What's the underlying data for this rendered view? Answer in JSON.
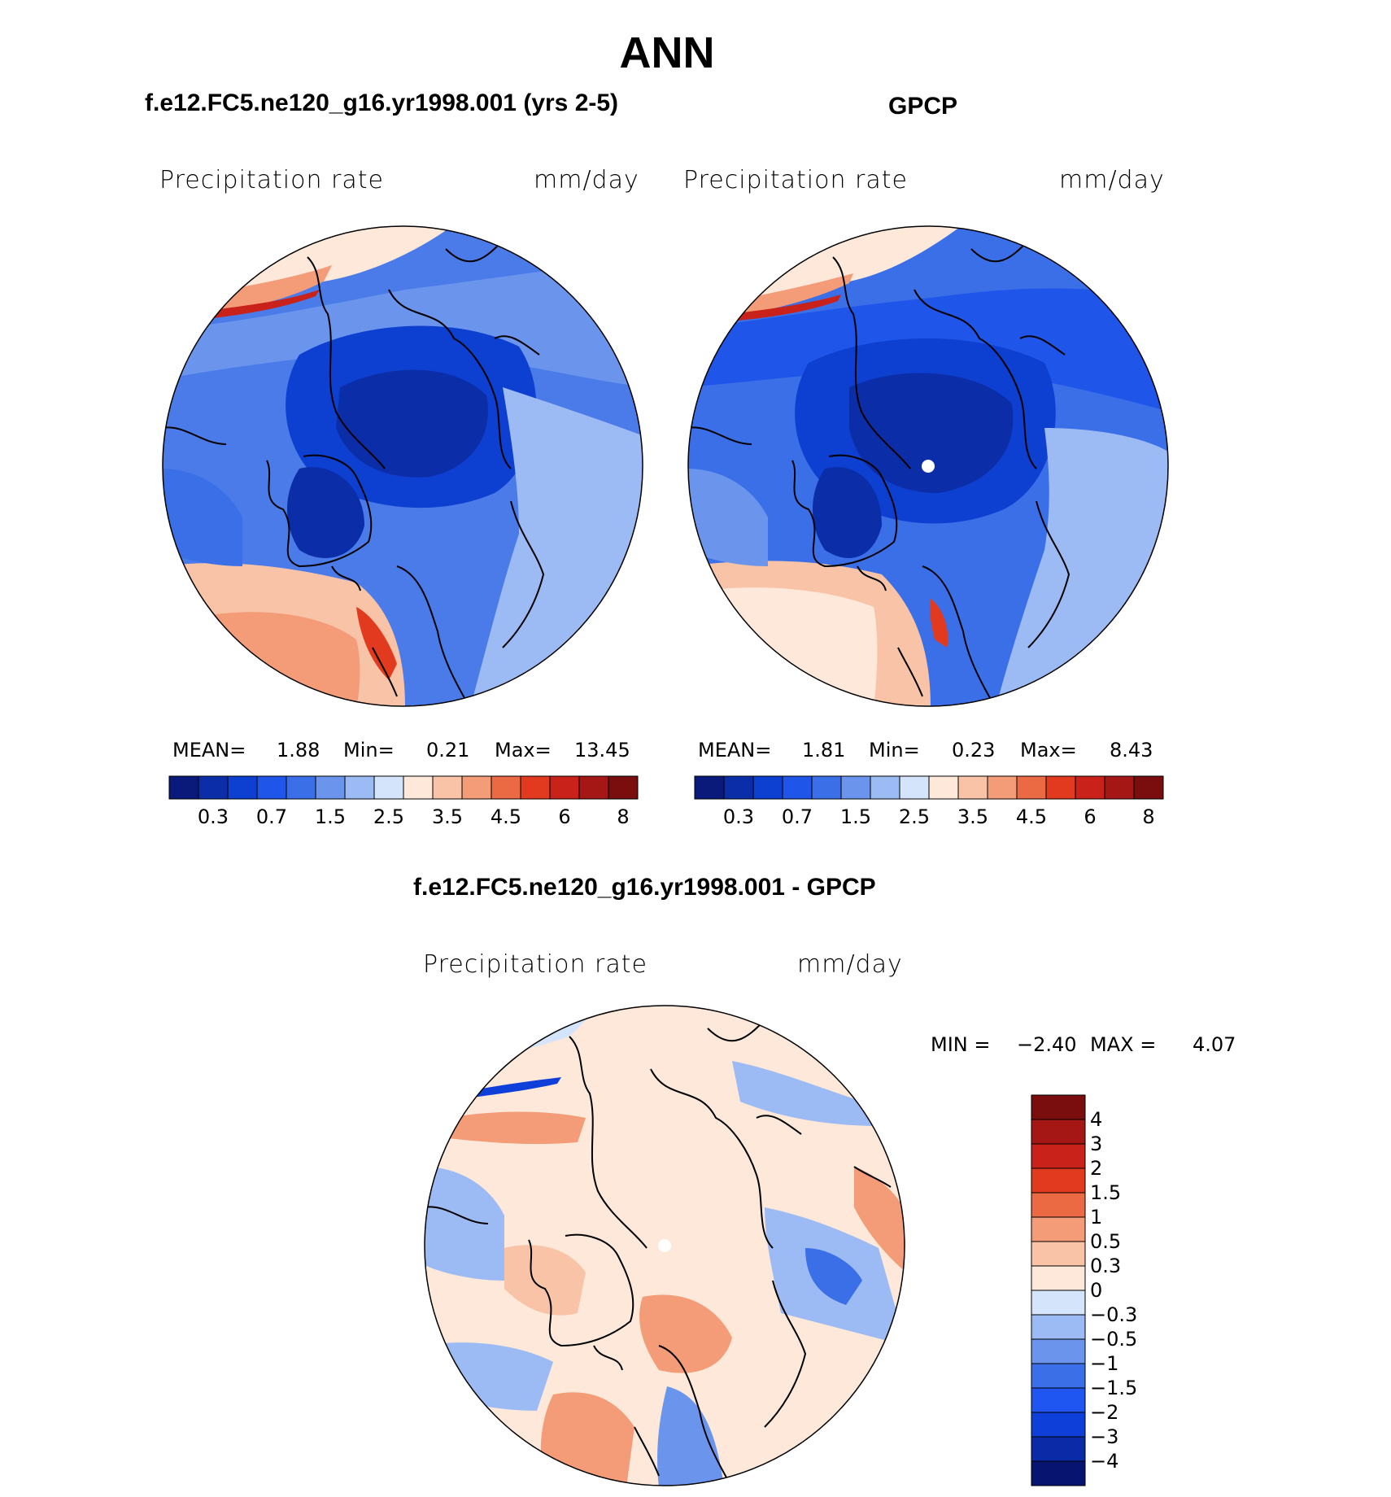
{
  "page_title": "ANN",
  "palette": {
    "abs": [
      "#0a1a7a",
      "#0b2ea8",
      "#0d3fd0",
      "#1f55e8",
      "#3a6fe8",
      "#6b95ec",
      "#9cbaf3",
      "#d4e4fb",
      "#fde8da",
      "#f8c3a6",
      "#f39c77",
      "#ec6a43",
      "#e23a1e",
      "#c8221a",
      "#a41715",
      "#7a0d0d"
    ],
    "diff": [
      "#081570",
      "#0b2aa8",
      "#0e3fd8",
      "#1f55f0",
      "#3a6fe8",
      "#6b95ec",
      "#9cbaf3",
      "#d4e4fb",
      "#fde8da",
      "#f8c3a6",
      "#f39c77",
      "#ec6a43",
      "#e23a1e",
      "#c8221a",
      "#a41715",
      "#7a0d0d"
    ],
    "ocean_base": "#3b6fe6"
  },
  "panels": {
    "left": {
      "subtitle": "f.e12.FC5.ne120_g16.yr1998.001 (yrs 2-5)",
      "variable": "Precipitation  rate",
      "units": "mm/day",
      "mean_label": "MEAN=",
      "mean_value": "1.88",
      "min_label": "Min=",
      "min_value": "0.21",
      "max_label": "Max=",
      "max_value": "13.45"
    },
    "right": {
      "subtitle": "GPCP",
      "variable": "Precipitation  rate",
      "units": "mm/day",
      "mean_label": "MEAN=",
      "mean_value": "1.81",
      "min_label": "Min=",
      "min_value": "0.23",
      "max_label": "Max=",
      "max_value": "8.43"
    },
    "diff": {
      "subtitle": "f.e12.FC5.ne120_g16.yr1998.001 - GPCP",
      "variable": "Precipitation  rate",
      "units": "mm/day",
      "min_label": "MIN =",
      "min_value": "−2.40",
      "max_label": "MAX =",
      "max_value": "4.07"
    }
  },
  "chart_data": [
    {
      "type": "heatmap",
      "projection": "north polar stereographic",
      "title": "f.e12.FC5.ne120_g16.yr1998.001 (yrs 2-5)",
      "variable": "Precipitation rate",
      "units": "mm/day",
      "stats": {
        "mean": 1.88,
        "min": 0.21,
        "max": 13.45
      },
      "colorbar_levels": [
        0.2,
        0.3,
        0.5,
        0.7,
        1,
        1.5,
        2,
        2.5,
        3,
        3.5,
        4,
        4.5,
        5,
        6,
        7,
        8
      ],
      "colorbar_tick_labels": [
        "0.3",
        "0.7",
        "1.5",
        "2.5",
        "3.5",
        "4.5",
        "6",
        "8"
      ]
    },
    {
      "type": "heatmap",
      "projection": "north polar stereographic",
      "title": "GPCP",
      "variable": "Precipitation rate",
      "units": "mm/day",
      "stats": {
        "mean": 1.81,
        "min": 0.23,
        "max": 8.43
      },
      "colorbar_levels": [
        0.2,
        0.3,
        0.5,
        0.7,
        1,
        1.5,
        2,
        2.5,
        3,
        3.5,
        4,
        4.5,
        5,
        6,
        7,
        8
      ],
      "colorbar_tick_labels": [
        "0.3",
        "0.7",
        "1.5",
        "2.5",
        "3.5",
        "4.5",
        "6",
        "8"
      ]
    },
    {
      "type": "heatmap",
      "projection": "north polar stereographic",
      "title": "f.e12.FC5.ne120_g16.yr1998.001 - GPCP",
      "variable": "Precipitation rate",
      "units": "mm/day",
      "stats": {
        "min": -2.4,
        "max": 4.07
      },
      "colorbar_tick_labels": [
        "4",
        "3",
        "2",
        "1.5",
        "1",
        "0.5",
        "0.3",
        "0",
        "−0.3",
        "−0.5",
        "−1",
        "−1.5",
        "−2",
        "−3",
        "−4"
      ]
    }
  ]
}
